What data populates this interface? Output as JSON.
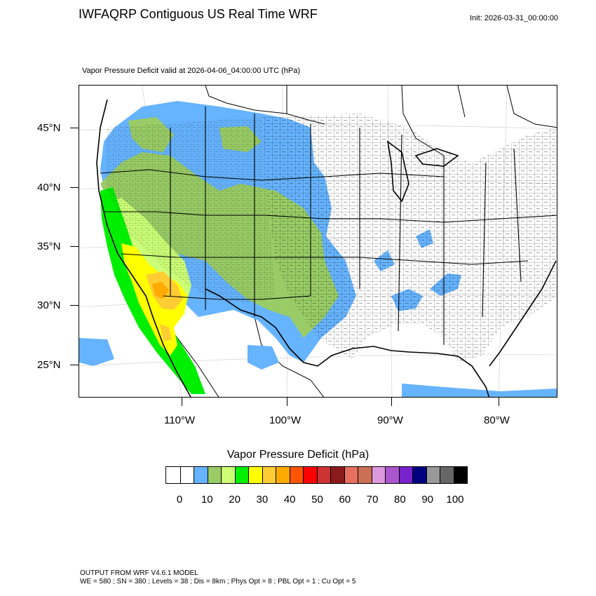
{
  "header": {
    "title": "IWFAQRP Contiguous US Real Time WRF",
    "init": "Init: 2026-03-31_00:00:00",
    "subtitle": "Vapor Pressure Deficit valid at 2026-04-06_04:00:00 UTC   (hPa)"
  },
  "map": {
    "lat_labels": [
      "45°N",
      "40°N",
      "35°N",
      "30°N",
      "25°N"
    ],
    "lon_labels": [
      "110°W",
      "100°W",
      "90°W",
      "80°W"
    ],
    "fill_colors": {
      "light_blue": "#66b3ff",
      "olive_green": "#99cc66",
      "light_green": "#ccff77",
      "bright_green": "#00ee00",
      "yellow": "#ffff00",
      "gold": "#ffcc33",
      "orange": "#ffaa00",
      "county_lines": "#000000"
    }
  },
  "legend": {
    "title": "Vapor Pressure Deficit  (hPa)",
    "colors": [
      "#ffffff",
      "#ffffff",
      "#66b3ff",
      "#99cc66",
      "#ccff77",
      "#00ee00",
      "#ffff00",
      "#ffcc33",
      "#ffaa00",
      "#ff5500",
      "#ff0000",
      "#cc3333",
      "#8b1a1a",
      "#e87060",
      "#cc7055",
      "#dd99dd",
      "#aa55cc",
      "#7722cc",
      "#000080",
      "#999999",
      "#666666",
      "#000000"
    ],
    "ticks": [
      "0",
      "10",
      "20",
      "30",
      "40",
      "50",
      "60",
      "70",
      "80",
      "90",
      "100"
    ]
  },
  "footer": {
    "line1": "OUTPUT FROM WRF V4.6.1 MODEL",
    "line2": "WE = 580 ; SN = 380 ; Levels = 38 ; Dis = 8km ; Phys Opt = 8 ; PBL Opt = 1 ; Cu Opt = 5"
  }
}
